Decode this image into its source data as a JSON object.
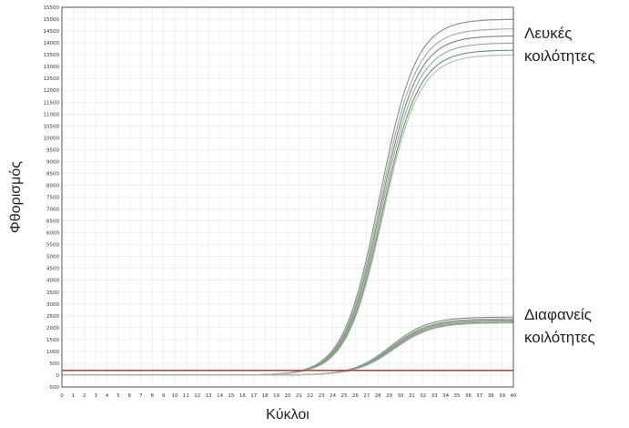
{
  "chart_data": {
    "type": "line",
    "xlabel": "Κύκλοι",
    "ylabel": "Φθορισμός",
    "xlim": [
      0,
      40
    ],
    "ylim": [
      -500,
      15500
    ],
    "x_ticks": [
      0,
      1,
      2,
      3,
      4,
      5,
      6,
      7,
      8,
      9,
      10,
      11,
      12,
      13,
      14,
      15,
      16,
      17,
      18,
      19,
      20,
      21,
      22,
      23,
      24,
      25,
      26,
      27,
      28,
      29,
      30,
      31,
      32,
      33,
      34,
      35,
      36,
      37,
      38,
      39,
      40
    ],
    "y_ticks": [
      -500,
      0,
      500,
      1000,
      1500,
      2000,
      2500,
      3000,
      3500,
      4000,
      4500,
      5000,
      5500,
      6000,
      6500,
      7000,
      7500,
      8000,
      8500,
      9000,
      9500,
      10000,
      10500,
      11000,
      11500,
      12000,
      12500,
      13000,
      13500,
      14000,
      14500,
      15000,
      15500
    ],
    "grid": true,
    "threshold": {
      "value": 200,
      "color": "#c0392b"
    },
    "annotations": [
      {
        "lines": [
          "Λευκές",
          "κοιλότητες"
        ]
      },
      {
        "lines": [
          "Διαφανείς",
          "κοιλότητες"
        ]
      }
    ],
    "groups": [
      {
        "id": "white",
        "plateaus": [
          15000,
          14600,
          14300,
          14000,
          13700,
          13500
        ],
        "midpoint": 28.3,
        "slope": 0.62,
        "base": 0
      },
      {
        "id": "clear",
        "plateaus": [
          2450,
          2380,
          2330,
          2280,
          2230,
          2200
        ],
        "midpoint": 29.3,
        "slope": 0.6,
        "base": 0
      }
    ],
    "series_colors": [
      "#8a8a8a",
      "#a8a8a8",
      "#6e8f6e",
      "#9aa89a",
      "#5a9a5a",
      "#b8b8b8"
    ]
  }
}
